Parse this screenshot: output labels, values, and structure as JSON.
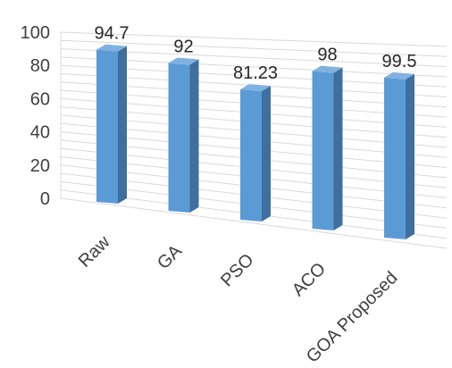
{
  "chart_data": {
    "type": "bar",
    "categories": [
      "Raw",
      "GA",
      "PSO",
      "ACO",
      "GOA Proposed"
    ],
    "values": [
      94.7,
      92,
      81.23,
      98,
      99.5
    ],
    "data_labels": [
      "94.7",
      "92",
      "81.23",
      "98",
      "99.5"
    ],
    "yticks": [
      "0",
      "20",
      "40",
      "60",
      "80",
      "100"
    ],
    "ylim": [
      0,
      100
    ],
    "title": "",
    "xlabel": "",
    "ylabel": "",
    "grid": true,
    "style": "3d-perspective-columns",
    "bar_color": "#5b9bd5",
    "bar_side_color": "#3f6f9e",
    "bar_top_color": "#7fb2e2"
  }
}
